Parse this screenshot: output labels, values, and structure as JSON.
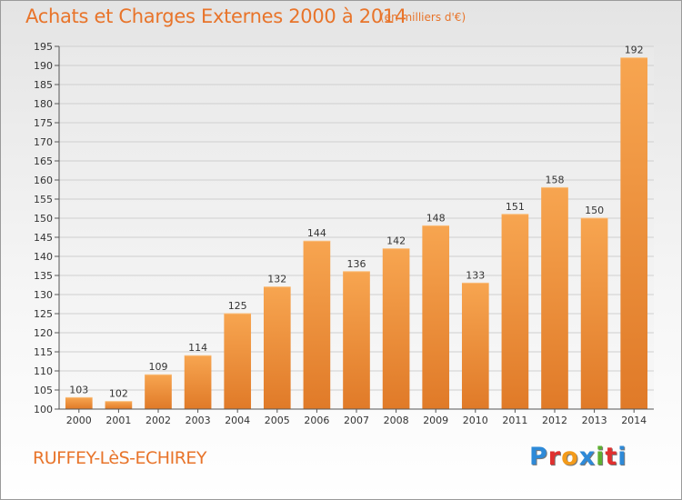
{
  "header": {
    "title": "Achats et Charges Externes 2000 à 2014",
    "unit": "(en milliers d'€)"
  },
  "footer": {
    "commune": "RUFFEY-LèS-ECHIREY",
    "logo_text": "Proxiti"
  },
  "colors": {
    "accent": "#e8742a",
    "bar_top": "#f7a550",
    "bar_bottom": "#e07a28",
    "logo": [
      "#2e8ad8",
      "#e0302f",
      "#f39b1b",
      "#2e8ad8",
      "#5db030",
      "#e0302f",
      "#2e8ad8"
    ]
  },
  "chart_data": {
    "type": "bar",
    "categories": [
      "2000",
      "2001",
      "2002",
      "2003",
      "2004",
      "2005",
      "2006",
      "2007",
      "2008",
      "2009",
      "2010",
      "2011",
      "2012",
      "2013",
      "2014"
    ],
    "values": [
      103,
      102,
      109,
      114,
      125,
      132,
      144,
      136,
      142,
      148,
      133,
      151,
      158,
      150,
      192
    ],
    "labels": [
      "103",
      "102",
      "109",
      "114",
      "125",
      "132",
      "144",
      "136",
      "142",
      "148",
      "133",
      "151",
      "158",
      "150",
      "192"
    ],
    "yticks": [
      100,
      105,
      110,
      115,
      120,
      125,
      130,
      135,
      140,
      145,
      150,
      155,
      160,
      165,
      170,
      175,
      180,
      185,
      190,
      195
    ],
    "ylim": [
      100,
      195
    ],
    "grid": true,
    "legend": "none"
  }
}
